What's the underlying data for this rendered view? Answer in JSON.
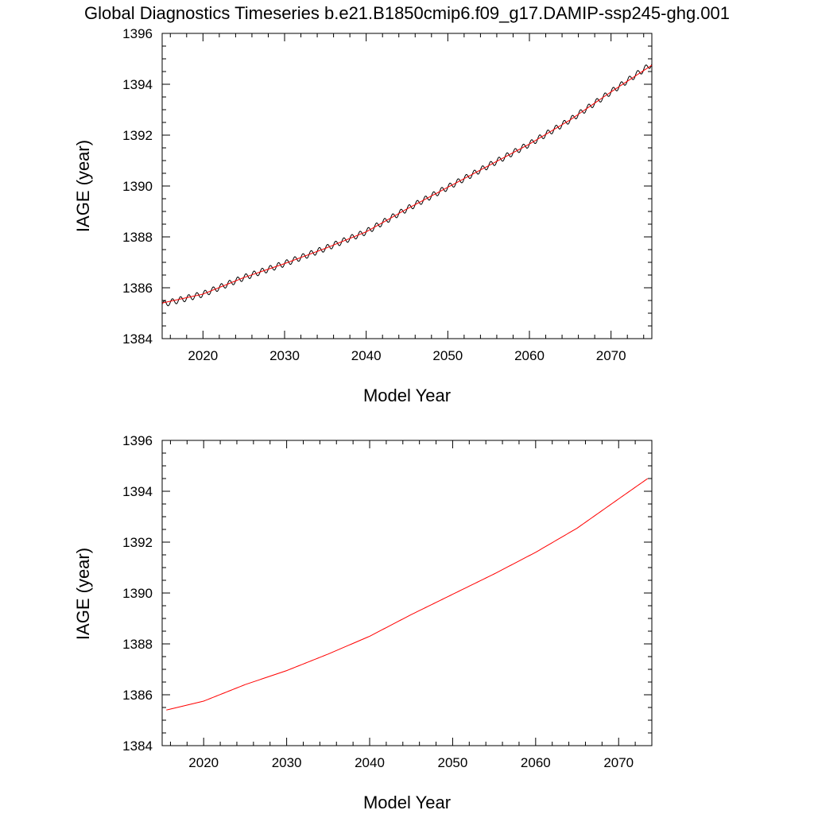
{
  "title": "Global Diagnostics Timeseries b.e21.B1850cmip6.f09_g17.DAMIP-ssp245-ghg.001",
  "colors": {
    "monthly": "#000000",
    "annual": "#ff0000"
  },
  "chart_data": [
    {
      "type": "line",
      "xlabel": "Model Year",
      "ylabel": "IAGE (year)",
      "xlim": [
        2015,
        2075
      ],
      "ylim": [
        1384,
        1396
      ],
      "xticks": [
        "2020",
        "2030",
        "2040",
        "2050",
        "2060",
        "2070"
      ],
      "yticks": [
        "1384",
        "1386",
        "1388",
        "1390",
        "1392",
        "1394",
        "1396"
      ],
      "grid": false,
      "seasonal_amplitude": 0.12,
      "series": [
        {
          "style": "monthly",
          "color": "#000000",
          "x": [
            2015,
            2020,
            2025,
            2030,
            2035,
            2040,
            2045,
            2050,
            2055,
            2060,
            2065,
            2070,
            2075
          ],
          "y": [
            1385.35,
            1385.75,
            1386.4,
            1386.95,
            1387.55,
            1388.2,
            1389.1,
            1389.95,
            1390.8,
            1391.65,
            1392.6,
            1393.7,
            1394.8
          ]
        },
        {
          "style": "annual",
          "color": "#ff0000",
          "x": [
            2015,
            2020,
            2025,
            2030,
            2035,
            2040,
            2045,
            2050,
            2055,
            2060,
            2065,
            2070,
            2075
          ],
          "y": [
            1385.4,
            1385.75,
            1386.4,
            1386.95,
            1387.55,
            1388.2,
            1389.1,
            1389.95,
            1390.8,
            1391.65,
            1392.6,
            1393.7,
            1394.75
          ]
        }
      ]
    },
    {
      "type": "line",
      "xlabel": "Model Year",
      "ylabel": "IAGE (year)",
      "xlim": [
        2015,
        2074
      ],
      "ylim": [
        1384,
        1396
      ],
      "xticks": [
        "2020",
        "2030",
        "2040",
        "2050",
        "2060",
        "2070"
      ],
      "yticks": [
        "1384",
        "1386",
        "1388",
        "1390",
        "1392",
        "1394",
        "1396"
      ],
      "grid": false,
      "series": [
        {
          "style": "annual",
          "color": "#ff0000",
          "x": [
            2015.5,
            2020,
            2025,
            2030,
            2035,
            2040,
            2045,
            2050,
            2055,
            2060,
            2065,
            2070,
            2073.5
          ],
          "y": [
            1385.4,
            1385.75,
            1386.4,
            1386.95,
            1387.6,
            1388.3,
            1389.15,
            1389.95,
            1390.75,
            1391.6,
            1392.55,
            1393.7,
            1394.5
          ]
        }
      ]
    }
  ]
}
